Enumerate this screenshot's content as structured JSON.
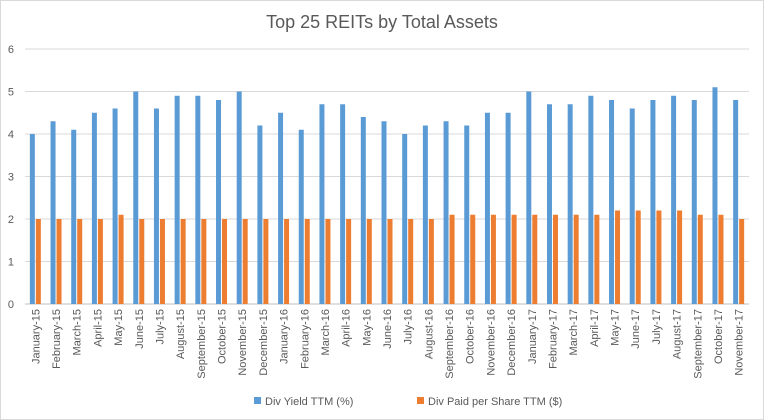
{
  "chart_data": {
    "type": "bar",
    "title": "Top 25 REITs by Total Assets",
    "xlabel": "",
    "ylabel": "",
    "ylim": [
      0,
      6
    ],
    "yticks": [
      "0",
      "1",
      "2",
      "3",
      "4",
      "5",
      "6"
    ],
    "grid": "horizontal",
    "legend_position": "bottom",
    "categories": [
      "January-15",
      "February-15",
      "March-15",
      "April-15",
      "May-15",
      "June-15",
      "July-15",
      "August-15",
      "September-15",
      "October-15",
      "November-15",
      "December-15",
      "January-16",
      "February-16",
      "March-16",
      "April-16",
      "May-16",
      "June-16",
      "July-16",
      "August-16",
      "September-16",
      "October-16",
      "November-16",
      "December-16",
      "January-17",
      "February-17",
      "March-17",
      "April-17",
      "May-17",
      "June-17",
      "July-17",
      "August-17",
      "September-17",
      "October-17",
      "November-17"
    ],
    "series": [
      {
        "name": "Div Yield TTM (%)",
        "color": "#5b9bd5",
        "values": [
          4.0,
          4.3,
          4.1,
          4.5,
          4.6,
          5.0,
          4.6,
          4.9,
          4.9,
          4.8,
          5.0,
          4.2,
          4.5,
          4.1,
          4.7,
          4.7,
          4.4,
          4.3,
          4.0,
          4.2,
          4.3,
          4.2,
          4.5,
          4.5,
          5.0,
          4.7,
          4.7,
          4.9,
          4.8,
          4.6,
          4.8,
          4.9,
          4.8,
          5.1,
          4.8
        ]
      },
      {
        "name": "Div Paid per Share TTM ($)",
        "color": "#ed7d31",
        "values": [
          2.0,
          2.0,
          2.0,
          2.0,
          2.1,
          2.0,
          2.0,
          2.0,
          2.0,
          2.0,
          2.0,
          2.0,
          2.0,
          2.0,
          2.0,
          2.0,
          2.0,
          2.0,
          2.0,
          2.0,
          2.1,
          2.1,
          2.1,
          2.1,
          2.1,
          2.1,
          2.1,
          2.1,
          2.2,
          2.2,
          2.2,
          2.2,
          2.1,
          2.1,
          2.0
        ]
      }
    ]
  }
}
